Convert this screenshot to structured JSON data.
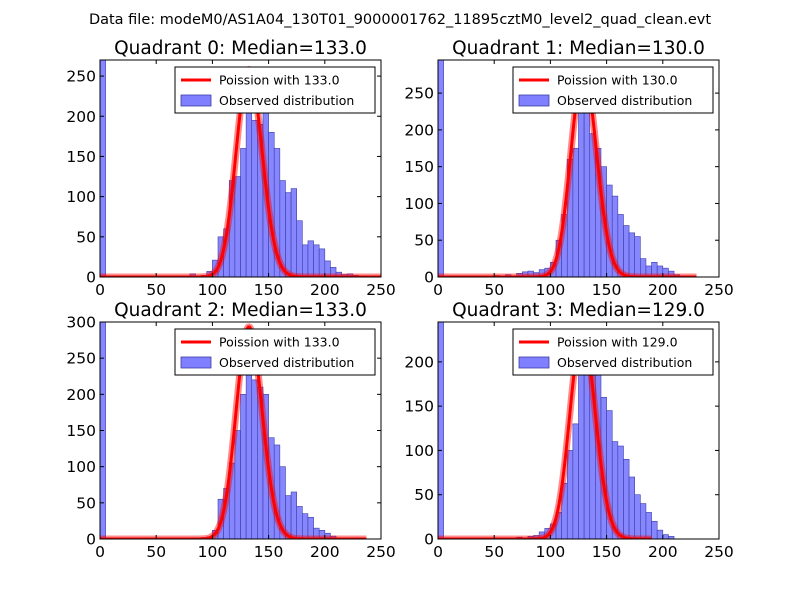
{
  "suptitle": "Data file: modeM0/AS1A04_130T01_9000001762_11895cztM0_level2_quad_clean.evt",
  "colors": {
    "hist_fill": "#7f7fff",
    "hist_edge": "#3d3da8",
    "poisson": "#ff0000",
    "axes": "#000000"
  },
  "chart_data": [
    {
      "type": "bar",
      "title": "Quadrant 0: Median=133.0",
      "xlim": [
        0,
        250
      ],
      "ylim": [
        0,
        270
      ],
      "xticks": [
        0,
        50,
        100,
        150,
        200,
        250
      ],
      "yticks": [
        0,
        50,
        100,
        150,
        200,
        250
      ],
      "xtick_labels": [
        "0",
        "50",
        "100",
        "150",
        "200",
        "250"
      ],
      "ytick_labels": [
        "0",
        "50",
        "100",
        "150",
        "200",
        "250"
      ],
      "legend": {
        "location": "upper right",
        "line_label": "Poission with 133.0",
        "bar_label": "Observed distribution"
      },
      "poisson_mean": 133.0,
      "poisson_peak": 258,
      "poisson_xrange": [
        0,
        250
      ],
      "bin_width": 5,
      "zero_bin_value": 270,
      "bins": [
        [
          80,
          4
        ],
        [
          90,
          2
        ],
        [
          95,
          7
        ],
        [
          100,
          21
        ],
        [
          105,
          50
        ],
        [
          110,
          60
        ],
        [
          115,
          120
        ],
        [
          120,
          125
        ],
        [
          125,
          160
        ],
        [
          130,
          220
        ],
        [
          135,
          195
        ],
        [
          140,
          190
        ],
        [
          145,
          245
        ],
        [
          150,
          180
        ],
        [
          155,
          160
        ],
        [
          160,
          120
        ],
        [
          165,
          105
        ],
        [
          170,
          110
        ],
        [
          175,
          70
        ],
        [
          180,
          40
        ],
        [
          185,
          45
        ],
        [
          190,
          40
        ],
        [
          195,
          35
        ],
        [
          200,
          20
        ],
        [
          205,
          12
        ],
        [
          210,
          6
        ],
        [
          215,
          3
        ],
        [
          220,
          4
        ],
        [
          225,
          2
        ]
      ]
    },
    {
      "type": "bar",
      "title": "Quadrant 1: Median=130.0",
      "xlim": [
        0,
        250
      ],
      "ylim": [
        0,
        295
      ],
      "xticks": [
        0,
        50,
        100,
        150,
        200,
        250
      ],
      "yticks": [
        0,
        50,
        100,
        150,
        200,
        250
      ],
      "xtick_labels": [
        "0",
        "50",
        "100",
        "150",
        "200",
        "250"
      ],
      "ytick_labels": [
        "0",
        "50",
        "100",
        "150",
        "200",
        "250"
      ],
      "legend": {
        "location": "upper right",
        "line_label": "Poission with 130.0",
        "bar_label": "Observed distribution"
      },
      "poisson_mean": 130.0,
      "poisson_peak": 280,
      "poisson_xrange": [
        0,
        230
      ],
      "bin_width": 5,
      "zero_bin_value": 295,
      "bins": [
        [
          50,
          2
        ],
        [
          60,
          3
        ],
        [
          70,
          5
        ],
        [
          75,
          7
        ],
        [
          80,
          8
        ],
        [
          85,
          6
        ],
        [
          90,
          10
        ],
        [
          95,
          12
        ],
        [
          100,
          20
        ],
        [
          105,
          50
        ],
        [
          110,
          85
        ],
        [
          115,
          160
        ],
        [
          120,
          175
        ],
        [
          125,
          240
        ],
        [
          130,
          260
        ],
        [
          135,
          195
        ],
        [
          140,
          175
        ],
        [
          145,
          150
        ],
        [
          150,
          125
        ],
        [
          155,
          110
        ],
        [
          160,
          85
        ],
        [
          165,
          70
        ],
        [
          170,
          60
        ],
        [
          175,
          55
        ],
        [
          180,
          25
        ],
        [
          185,
          15
        ],
        [
          190,
          20
        ],
        [
          195,
          15
        ],
        [
          200,
          12
        ],
        [
          205,
          8
        ],
        [
          210,
          3
        ]
      ]
    },
    {
      "type": "bar",
      "title": "Quadrant 2: Median=133.0",
      "xlim": [
        0,
        250
      ],
      "ylim": [
        0,
        300
      ],
      "xticks": [
        0,
        50,
        100,
        150,
        200,
        250
      ],
      "yticks": [
        0,
        50,
        100,
        150,
        200,
        250,
        300
      ],
      "xtick_labels": [
        "0",
        "50",
        "100",
        "150",
        "200",
        "250"
      ],
      "ytick_labels": [
        "0",
        "50",
        "100",
        "150",
        "200",
        "250",
        "300"
      ],
      "legend": {
        "location": "upper right",
        "line_label": "Poission with 133.0",
        "bar_label": "Observed distribution"
      },
      "poisson_mean": 133.0,
      "poisson_peak": 293,
      "poisson_xrange": [
        0,
        237
      ],
      "bin_width": 5,
      "zero_bin_value": 300,
      "bins": [
        [
          90,
          2
        ],
        [
          95,
          3
        ],
        [
          100,
          12
        ],
        [
          105,
          55
        ],
        [
          110,
          70
        ],
        [
          115,
          105
        ],
        [
          120,
          150
        ],
        [
          125,
          200
        ],
        [
          130,
          270
        ],
        [
          135,
          220
        ],
        [
          140,
          210
        ],
        [
          145,
          200
        ],
        [
          150,
          140
        ],
        [
          155,
          130
        ],
        [
          160,
          100
        ],
        [
          165,
          60
        ],
        [
          170,
          65
        ],
        [
          175,
          45
        ],
        [
          180,
          35
        ],
        [
          185,
          30
        ],
        [
          190,
          15
        ],
        [
          195,
          12
        ],
        [
          200,
          8
        ],
        [
          205,
          4
        ]
      ]
    },
    {
      "type": "bar",
      "title": "Quadrant 3: Median=129.0",
      "xlim": [
        0,
        250
      ],
      "ylim": [
        0,
        245
      ],
      "xticks": [
        0,
        50,
        100,
        150,
        200,
        250
      ],
      "yticks": [
        0,
        50,
        100,
        150,
        200
      ],
      "xtick_labels": [
        "0",
        "50",
        "100",
        "150",
        "200",
        "250"
      ],
      "ytick_labels": [
        "0",
        "50",
        "100",
        "150",
        "200"
      ],
      "legend": {
        "location": "upper right",
        "line_label": "Poission with 129.0",
        "bar_label": "Observed distribution"
      },
      "poisson_mean": 129.0,
      "poisson_peak": 233,
      "poisson_xrange": [
        0,
        190
      ],
      "bin_width": 5,
      "zero_bin_value": 245,
      "bins": [
        [
          70,
          2
        ],
        [
          80,
          3
        ],
        [
          85,
          4
        ],
        [
          90,
          8
        ],
        [
          95,
          12
        ],
        [
          100,
          17
        ],
        [
          105,
          30
        ],
        [
          110,
          63
        ],
        [
          115,
          100
        ],
        [
          120,
          130
        ],
        [
          125,
          200
        ],
        [
          130,
          220
        ],
        [
          135,
          210
        ],
        [
          140,
          215
        ],
        [
          145,
          160
        ],
        [
          150,
          145
        ],
        [
          155,
          110
        ],
        [
          160,
          105
        ],
        [
          165,
          90
        ],
        [
          170,
          70
        ],
        [
          175,
          50
        ],
        [
          180,
          40
        ],
        [
          185,
          30
        ],
        [
          190,
          20
        ],
        [
          195,
          10
        ],
        [
          200,
          5
        ],
        [
          205,
          3
        ]
      ]
    }
  ]
}
